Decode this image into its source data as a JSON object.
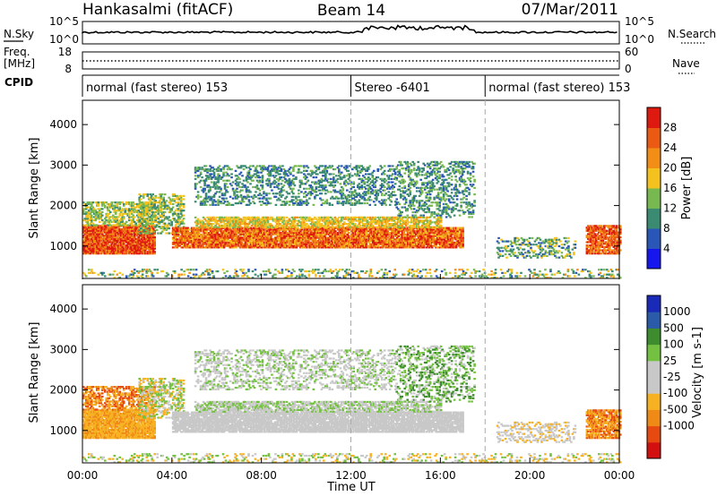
{
  "header": {
    "station": "Hankasalmi (fitACF)",
    "beam": "Beam 14",
    "date": "07/Mar/2011"
  },
  "strip_nsky": {
    "left_label": "N.Sky",
    "left_ticks": [
      "10^5",
      "10^0"
    ],
    "right_label": "N.Search",
    "right_ticks": [
      "10^5",
      "10^0"
    ]
  },
  "strip_freq": {
    "left_label_line1": "Freq.",
    "left_label_line2": "[MHz]",
    "left_ticks": [
      "18",
      "8"
    ],
    "right_label": "Nave",
    "right_ticks": [
      "60",
      "0"
    ]
  },
  "cpid": {
    "label": "CPID",
    "segments": [
      {
        "text": "normal (fast stereo) 153",
        "start_h": 0.0,
        "end_h": 12.0
      },
      {
        "text": "Stereo -6401",
        "start_h": 12.0,
        "end_h": 18.0
      },
      {
        "text": "normal (fast stereo) 153",
        "start_h": 18.0,
        "end_h": 24.0
      }
    ]
  },
  "colors": {
    "power": [
      "#1616ee",
      "#2a56b8",
      "#3b8a72",
      "#78b850",
      "#f4c21e",
      "#f28e16",
      "#ea5a12",
      "#de1a10"
    ],
    "velocity": [
      "#d21010",
      "#e64a10",
      "#f08a16",
      "#f7b224",
      "#c8c8c8",
      "#c8c8c8",
      "#74c040",
      "#3e8c2e",
      "#2a5aa8",
      "#1a2ab8"
    ]
  },
  "chart_data": [
    {
      "type": "heatmap",
      "title": "Power",
      "ylabel": "Slant Range [km]",
      "ylim": [
        200,
        4600
      ],
      "yticks": [
        "1000",
        "2000",
        "3000",
        "4000"
      ],
      "colorbar": {
        "label": "Power [dB]",
        "ticks": [
          "4",
          "8",
          "12",
          "16",
          "20",
          "24",
          "28"
        ]
      }
    },
    {
      "type": "heatmap",
      "title": "Velocity",
      "ylabel": "Slant Range [km]",
      "ylim": [
        200,
        4600
      ],
      "yticks": [
        "1000",
        "2000",
        "3000",
        "4000"
      ],
      "colorbar": {
        "label": "Velocity [m s-1]",
        "ticks": [
          "1000",
          "500",
          "100",
          "25",
          "-25",
          "-100",
          "-500",
          "-1000"
        ]
      }
    }
  ],
  "xaxis": {
    "label": "Time UT",
    "ticks": [
      "00:00",
      "04:00",
      "08:00",
      "12:00",
      "16:00",
      "20:00",
      "00:00"
    ],
    "xlim_hours": [
      0,
      24
    ]
  }
}
